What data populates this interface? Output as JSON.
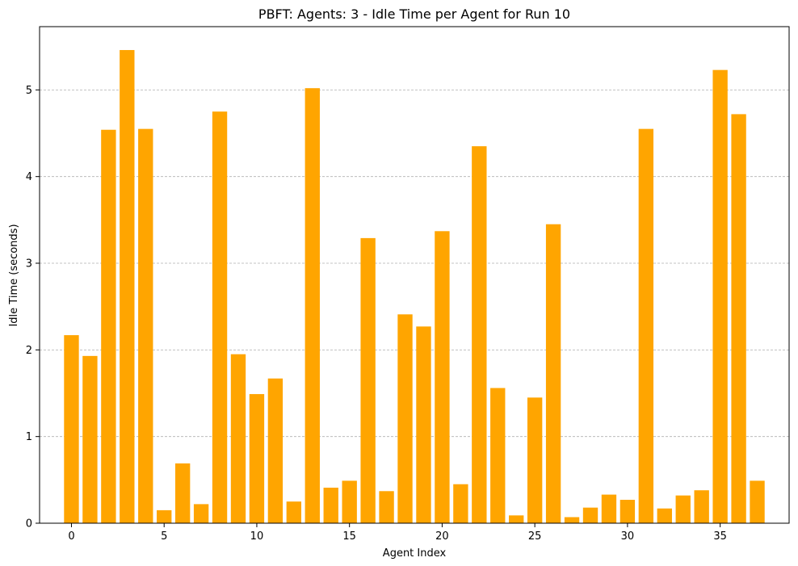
{
  "chart_data": {
    "type": "bar",
    "title": "PBFT: Agents: 3 - Idle Time per Agent for Run 10",
    "xlabel": "Agent Index",
    "ylabel": "Idle Time (seconds)",
    "x": [
      0,
      1,
      2,
      3,
      4,
      5,
      6,
      7,
      8,
      9,
      10,
      11,
      12,
      13,
      14,
      15,
      16,
      17,
      18,
      19,
      20,
      21,
      22,
      23,
      24,
      25,
      26,
      27,
      28,
      29,
      30,
      31,
      32,
      33,
      34,
      35,
      36,
      37
    ],
    "values": [
      2.17,
      1.93,
      4.54,
      5.46,
      4.55,
      0.15,
      0.69,
      0.22,
      4.75,
      1.95,
      1.49,
      1.67,
      0.25,
      5.02,
      0.41,
      0.49,
      3.29,
      0.37,
      2.41,
      2.27,
      3.37,
      0.45,
      4.35,
      1.56,
      0.09,
      1.45,
      3.45,
      0.07,
      0.18,
      0.33,
      0.27,
      4.55,
      0.17,
      0.32,
      0.38,
      5.23,
      4.72,
      0.49
    ],
    "xticks": [
      0,
      5,
      10,
      15,
      20,
      25,
      30,
      35
    ],
    "yticks": [
      0,
      1,
      2,
      3,
      4,
      5
    ],
    "xlim": [
      -1.72,
      38.72
    ],
    "ylim": [
      0,
      5.73
    ],
    "bar_color": "#FFA500",
    "grid": "horizontal dashed"
  }
}
